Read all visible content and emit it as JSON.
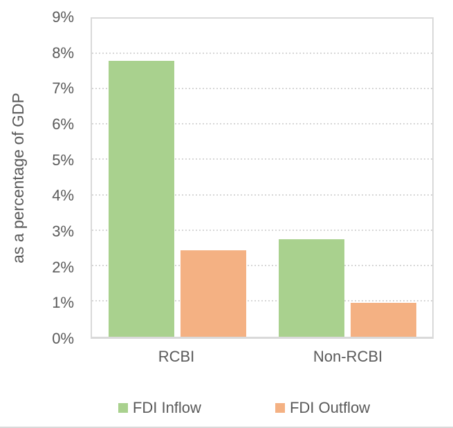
{
  "chart_data": {
    "type": "bar",
    "categories": [
      "RCBI",
      "Non-RCBI"
    ],
    "series": [
      {
        "name": "FDI Inflow",
        "color": "#A9D18E",
        "values": [
          7.8,
          2.75
        ]
      },
      {
        "name": "FDI Outflow",
        "color": "#F4B183",
        "values": [
          2.45,
          0.95
        ]
      }
    ],
    "xlabel": "",
    "ylabel": "as a percentage of GDP",
    "ylim": [
      0,
      9
    ],
    "yticks": [
      "0%",
      "1%",
      "2%",
      "3%",
      "4%",
      "5%",
      "6%",
      "7%",
      "8%",
      "9%"
    ],
    "grid": "horizontal-dotted",
    "legend_position": "bottom"
  },
  "style": {
    "text_color": "#595959",
    "grid_color": "#d6d6d6",
    "axis_color": "#d9d9d9",
    "background": "#ffffff"
  }
}
